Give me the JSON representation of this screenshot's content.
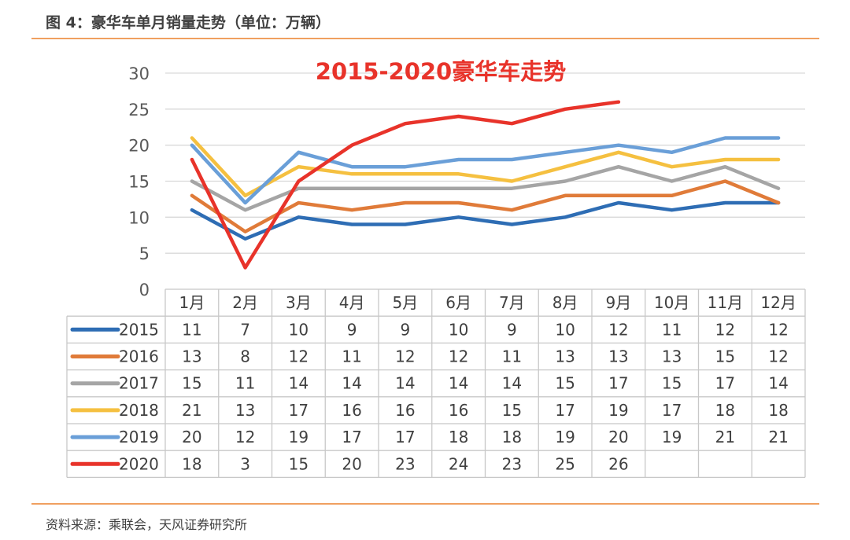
{
  "figure_title": "图 4：豪华车单月销量走势（单位：万辆）",
  "source": "资料来源：乘联会，天风证券研究所",
  "chart_data": {
    "type": "line",
    "title": "2015-2020豪华车走势",
    "categories": [
      "1月",
      "2月",
      "3月",
      "4月",
      "5月",
      "6月",
      "7月",
      "8月",
      "9月",
      "10月",
      "11月",
      "12月"
    ],
    "ylim": [
      0,
      30
    ],
    "yticks": [
      0,
      5,
      10,
      15,
      20,
      25,
      30
    ],
    "grid": true,
    "legend": "data-table",
    "series": [
      {
        "name": "2015",
        "color": "#2e6db4",
        "values": [
          11,
          7,
          10,
          9,
          9,
          10,
          9,
          10,
          12,
          11,
          12,
          12
        ]
      },
      {
        "name": "2016",
        "color": "#e07b39",
        "values": [
          13,
          8,
          12,
          11,
          12,
          12,
          11,
          13,
          13,
          13,
          15,
          12
        ]
      },
      {
        "name": "2017",
        "color": "#a5a5a5",
        "values": [
          15,
          11,
          14,
          14,
          14,
          14,
          14,
          15,
          17,
          15,
          17,
          14
        ]
      },
      {
        "name": "2018",
        "color": "#f5c040",
        "values": [
          21,
          13,
          17,
          16,
          16,
          16,
          15,
          17,
          19,
          17,
          18,
          18
        ]
      },
      {
        "name": "2019",
        "color": "#6a9fd8",
        "values": [
          20,
          12,
          19,
          17,
          17,
          18,
          18,
          19,
          20,
          19,
          21,
          21
        ]
      },
      {
        "name": "2020",
        "color": "#e8332a",
        "values": [
          18,
          3,
          15,
          20,
          23,
          24,
          23,
          25,
          26,
          null,
          null,
          null
        ]
      }
    ]
  }
}
